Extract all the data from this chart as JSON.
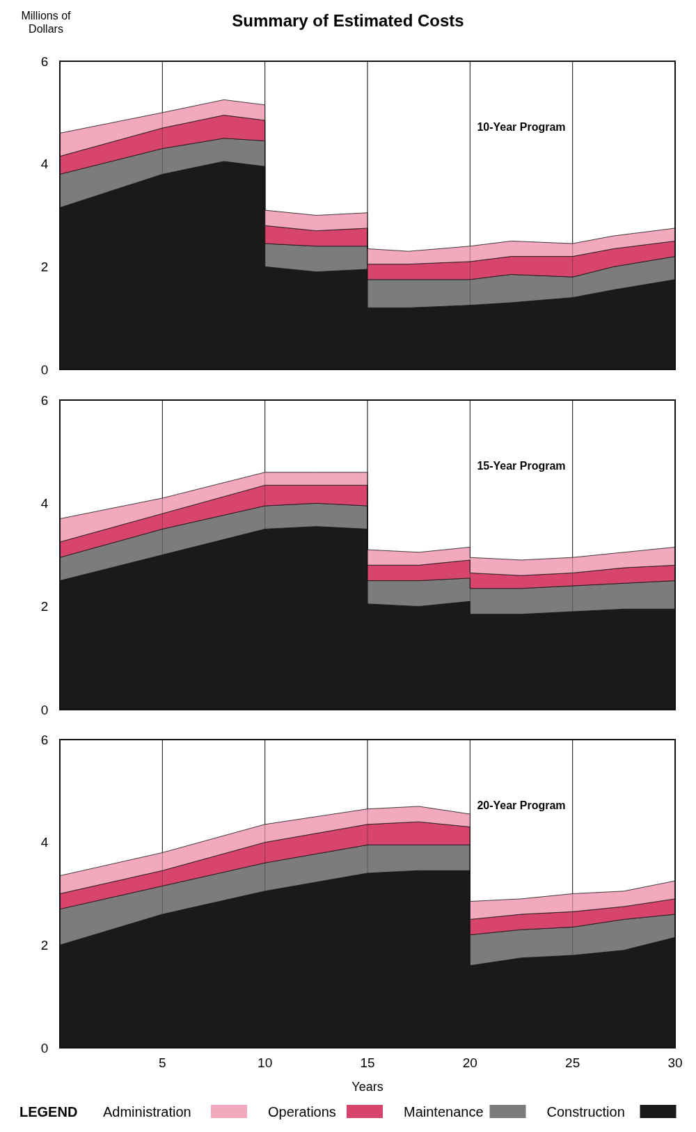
{
  "chart_data": [
    {
      "type": "area",
      "title": "Summary of Estimated Costs",
      "ylabel": "Millions of Dollars",
      "stacked": true,
      "grid": "x",
      "tick_labels": "y",
      "annotations": [
        "10-Year Program"
      ],
      "xlim": [
        0,
        30
      ],
      "xticks": [
        5,
        10,
        15,
        20,
        25,
        30
      ],
      "ylim": [
        0,
        6
      ],
      "yticks": [
        0,
        2,
        4,
        6
      ],
      "x": [
        0,
        5,
        8,
        10,
        10,
        12.5,
        15,
        15,
        17,
        20,
        22,
        25,
        27,
        30
      ],
      "series": [
        {
          "color": "#1a1a1a",
          "values": [
            3.15,
            3.8,
            4.05,
            3.95,
            2.0,
            1.9,
            1.95,
            1.2,
            1.2,
            1.25,
            1.3,
            1.4,
            1.55,
            1.75
          ]
        },
        {
          "color": "#7c7c7c",
          "values": [
            0.65,
            0.5,
            0.45,
            0.5,
            0.45,
            0.5,
            0.45,
            0.55,
            0.55,
            0.5,
            0.55,
            0.4,
            0.45,
            0.45
          ]
        },
        {
          "color": "#d8456c",
          "values": [
            0.35,
            0.4,
            0.45,
            0.4,
            0.35,
            0.3,
            0.35,
            0.3,
            0.3,
            0.35,
            0.35,
            0.4,
            0.35,
            0.3
          ]
        },
        {
          "color": "#f3a9bd",
          "values": [
            0.45,
            0.3,
            0.3,
            0.3,
            0.3,
            0.3,
            0.3,
            0.3,
            0.25,
            0.3,
            0.3,
            0.25,
            0.25,
            0.25
          ]
        }
      ]
    },
    {
      "type": "area",
      "stacked": true,
      "grid": "x",
      "tick_labels": "y",
      "annotations": [
        "15-Year Program"
      ],
      "xlim": [
        0,
        30
      ],
      "xticks": [
        5,
        10,
        15,
        20,
        25,
        30
      ],
      "ylim": [
        0,
        6
      ],
      "yticks": [
        0,
        2,
        4,
        6
      ],
      "x": [
        0,
        5,
        10,
        12.5,
        15,
        15,
        17.5,
        20,
        20,
        22.5,
        25,
        27.5,
        30
      ],
      "series": [
        {
          "color": "#1a1a1a",
          "values": [
            2.5,
            3.0,
            3.5,
            3.55,
            3.5,
            2.05,
            2.0,
            2.1,
            1.85,
            1.85,
            1.9,
            1.95,
            1.95
          ]
        },
        {
          "color": "#7c7c7c",
          "values": [
            0.45,
            0.5,
            0.45,
            0.45,
            0.45,
            0.45,
            0.5,
            0.45,
            0.5,
            0.5,
            0.5,
            0.5,
            0.55
          ]
        },
        {
          "color": "#d8456c",
          "values": [
            0.3,
            0.3,
            0.4,
            0.35,
            0.4,
            0.3,
            0.3,
            0.35,
            0.3,
            0.25,
            0.25,
            0.3,
            0.3
          ]
        },
        {
          "color": "#f3a9bd",
          "values": [
            0.45,
            0.3,
            0.25,
            0.25,
            0.25,
            0.3,
            0.25,
            0.25,
            0.3,
            0.3,
            0.3,
            0.3,
            0.35
          ]
        }
      ]
    },
    {
      "type": "area",
      "stacked": true,
      "grid": "x",
      "xlabel": "Years",
      "legend": "bottom",
      "legend_title": "LEGEND",
      "annotations": [
        "20-Year Program"
      ],
      "xlim": [
        0,
        30
      ],
      "xticks": [
        5,
        10,
        15,
        20,
        25,
        30
      ],
      "ylim": [
        0,
        6
      ],
      "yticks": [
        0,
        2,
        4,
        6
      ],
      "x": [
        0,
        5,
        10,
        15,
        17.5,
        20,
        20,
        22.5,
        25,
        27.5,
        30
      ],
      "series": [
        {
          "name": "Construction",
          "color": "#1a1a1a",
          "values": [
            2.0,
            2.6,
            3.05,
            3.4,
            3.45,
            3.45,
            1.6,
            1.75,
            1.8,
            1.9,
            2.15
          ]
        },
        {
          "name": "Maintenance",
          "color": "#7c7c7c",
          "values": [
            0.7,
            0.55,
            0.55,
            0.55,
            0.5,
            0.5,
            0.6,
            0.55,
            0.55,
            0.6,
            0.45
          ]
        },
        {
          "name": "Operations",
          "color": "#d8456c",
          "values": [
            0.3,
            0.3,
            0.4,
            0.4,
            0.45,
            0.35,
            0.3,
            0.3,
            0.3,
            0.25,
            0.3
          ]
        },
        {
          "name": "Administration",
          "color": "#f3a9bd",
          "values": [
            0.35,
            0.35,
            0.35,
            0.3,
            0.3,
            0.25,
            0.35,
            0.3,
            0.35,
            0.3,
            0.35
          ]
        }
      ]
    }
  ]
}
